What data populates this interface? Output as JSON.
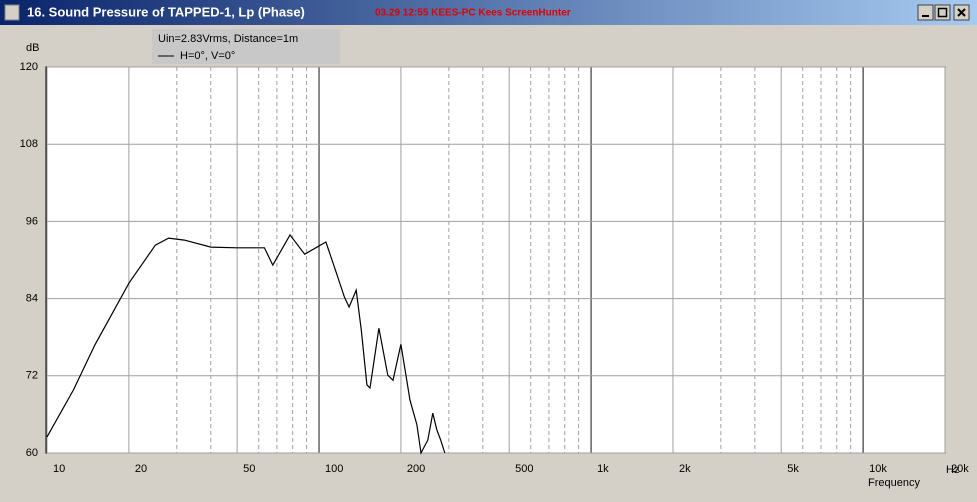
{
  "window": {
    "title": "16. Sound Pressure of TAPPED-1, Lp (Phase)",
    "watermark": "03.29  12:55  KEES-PC  Kees  ScreenHunter"
  },
  "chart_data": {
    "type": "line",
    "legend_lines": [
      "Uin=2.83Vrms, Distance=1m",
      "H=0°, V=0°"
    ],
    "ylabel": "dB",
    "xunit": "Hz",
    "xlabel": "Frequency",
    "xscale": "log",
    "xlim": [
      10,
      20000
    ],
    "ylim": [
      60,
      120
    ],
    "yticks": [
      60,
      72,
      84,
      96,
      108,
      120
    ],
    "xticks": [
      10,
      20,
      50,
      100,
      200,
      500,
      {
        "value": 1000,
        "label": "1k"
      },
      {
        "value": 2000,
        "label": "2k"
      },
      {
        "value": 5000,
        "label": "5k"
      },
      {
        "value": 10000,
        "label": "10k"
      },
      {
        "value": 20000,
        "label": "20k"
      }
    ],
    "major_xgrid": [
      100,
      1000,
      10000
    ],
    "minor_xgrid": [
      30,
      40,
      60,
      70,
      80,
      90,
      300,
      400,
      600,
      700,
      800,
      900,
      3000,
      4000,
      6000,
      7000,
      8000,
      9000
    ],
    "grid": true,
    "series": [
      {
        "name": "H=0°, V=0°",
        "color": "#000000",
        "x": [
          10,
          12.5,
          15,
          20,
          25,
          28,
          32,
          40,
          50,
          63,
          67.6,
          78.2,
          88.6,
          106,
          115,
          124,
          129,
          137,
          143,
          150,
          154,
          166,
          179,
          187,
          200,
          216,
          229,
          237,
          251,
          262,
          271,
          280,
          290
        ],
        "values": [
          62.5,
          69.8,
          76.8,
          86.4,
          92.3,
          93.4,
          93.1,
          92.0,
          91.9,
          91.9,
          89.2,
          93.9,
          90.9,
          92.8,
          88.4,
          84.2,
          82.7,
          85.3,
          79.1,
          70.6,
          70.1,
          79.4,
          72.1,
          71.3,
          76.9,
          68.2,
          64.4,
          60,
          62.0,
          66.2,
          63.6,
          62.0,
          60
        ]
      }
    ]
  }
}
